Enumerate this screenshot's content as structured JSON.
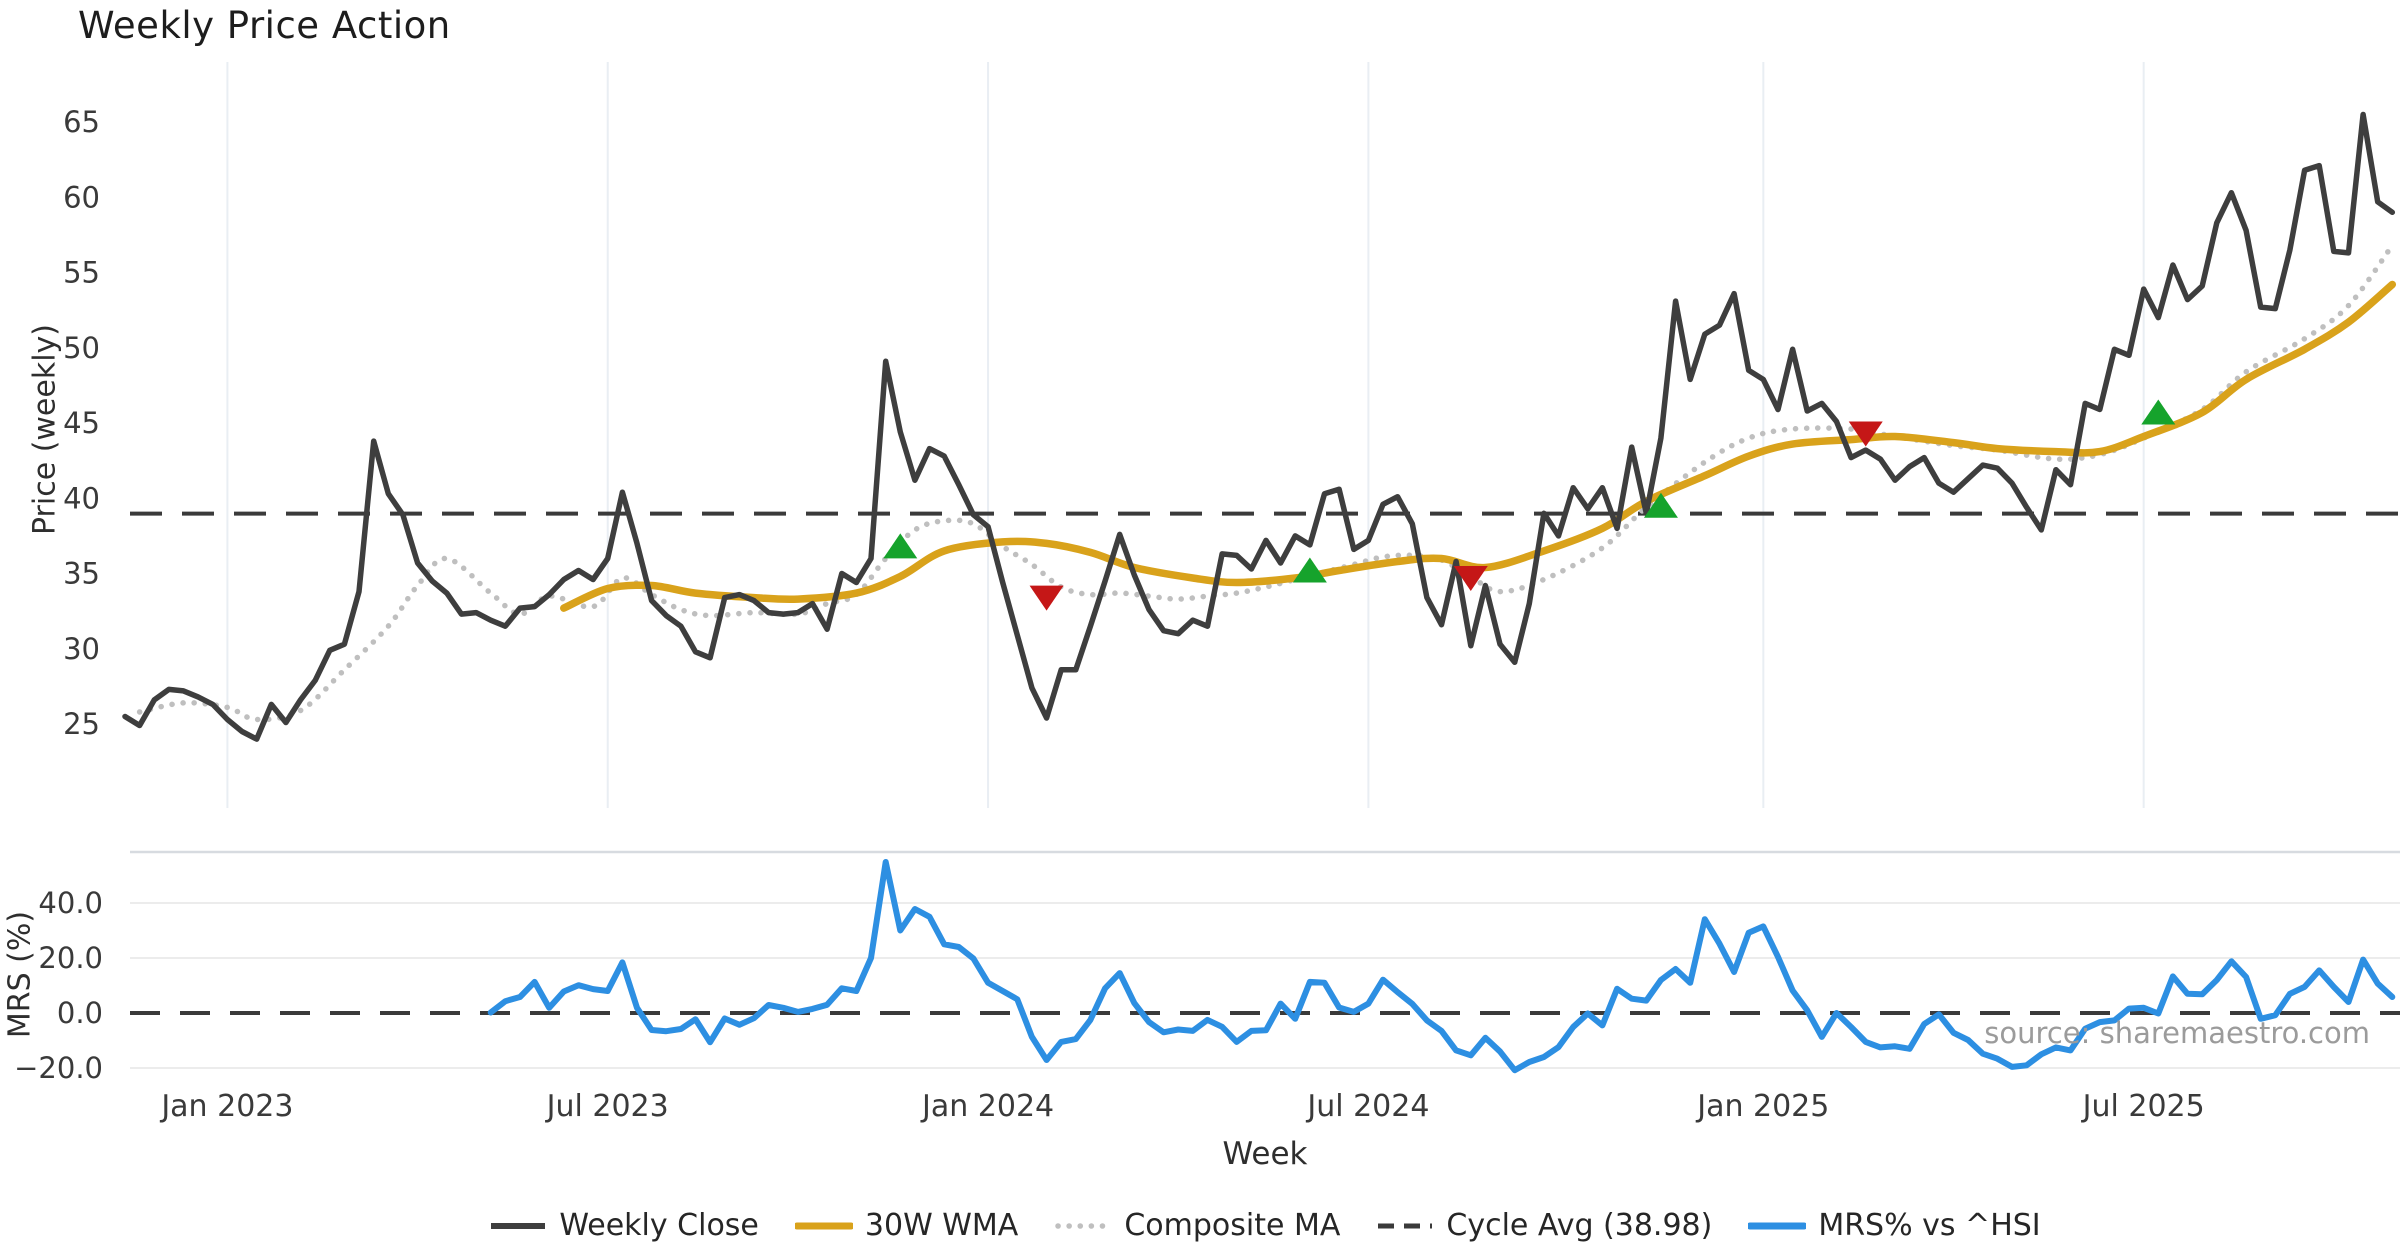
{
  "title": "Weekly Price Action",
  "price_panel": {
    "axis_label": "Price (weekly)",
    "ticks": [
      65,
      60,
      55,
      50,
      45,
      40,
      35,
      30,
      25
    ]
  },
  "mrs_panel": {
    "axis_label": "MRS (%)",
    "ticks": [
      {
        "label": "40.0",
        "value": 40
      },
      {
        "label": "20.0",
        "value": 20
      },
      {
        "label": "0.0",
        "value": 0
      },
      {
        "label": "−20.0",
        "value": -20
      }
    ]
  },
  "x_axis": {
    "label": "Week",
    "ticks": [
      {
        "label": "Jan 2023",
        "week": 7
      },
      {
        "label": "Jul 2023",
        "week": 33
      },
      {
        "label": "Jan 2024",
        "week": 59
      },
      {
        "label": "Jul 2024",
        "week": 85
      },
      {
        "label": "Jan 2025",
        "week": 112
      },
      {
        "label": "Jul 2025",
        "week": 138
      }
    ]
  },
  "source_note": "source: sharemaestro.com",
  "colors": {
    "weekly_close": "#3e3e3e",
    "wma": "#d9a21b",
    "composite": "#bfbfbf",
    "cycle_avg": "#3a3a3a",
    "mrs": "#2d8fe2",
    "buy_marker": "#16a32c",
    "sell_marker": "#c51717",
    "grid_vertical": "#e9eef3",
    "grid_horizontal": "#ececec",
    "panel_separator": "#d7dbe0"
  },
  "legend": [
    {
      "label": "Weekly Close",
      "style": "solid",
      "color": "#3e3e3e"
    },
    {
      "label": "30W WMA",
      "style": "solid-thick",
      "color": "#d9a21b"
    },
    {
      "label": "Composite MA",
      "style": "dotted",
      "color": "#bfbfbf"
    },
    {
      "label": "Cycle Avg (38.98)",
      "style": "dashed",
      "color": "#3a3a3a"
    },
    {
      "label": "MRS% vs ^HSI",
      "style": "solid-thick",
      "color": "#2d8fe2"
    }
  ],
  "chart_data": {
    "type": "line",
    "panels": [
      "price",
      "mrs"
    ],
    "week_count": 156,
    "cycle_avg": 38.98,
    "price_ylim": [
      23,
      69
    ],
    "mrs_ylim": [
      -25,
      58
    ],
    "series": [
      {
        "name": "Weekly Close",
        "panel": "price",
        "style": "solid",
        "start_week": 0,
        "values": [
          25.5,
          24.9,
          26.6,
          27.3,
          27.2,
          26.8,
          26.3,
          25.3,
          24.5,
          24.0,
          26.3,
          25.1,
          26.6,
          27.9,
          29.9,
          30.3,
          33.8,
          43.8,
          40.3,
          38.9,
          35.7,
          34.5,
          33.7,
          32.3,
          32.4,
          31.9,
          31.5,
          32.7,
          32.8,
          33.6,
          34.6,
          35.2,
          34.6,
          36.0,
          40.4,
          37.0,
          33.2,
          32.2,
          31.5,
          29.8,
          29.4,
          33.4,
          33.6,
          33.2,
          32.4,
          32.3,
          32.4,
          33.0,
          31.3,
          35.0,
          34.4,
          36.0,
          49.1,
          44.4,
          41.2,
          43.3,
          42.8,
          40.9,
          38.9,
          38.1,
          34.4,
          30.9,
          27.4,
          25.4,
          28.6,
          28.6,
          31.5,
          34.5,
          37.6,
          34.9,
          32.6,
          31.2,
          31.0,
          31.9,
          31.5,
          36.3,
          36.2,
          35.3,
          37.2,
          35.7,
          37.5,
          36.9,
          40.3,
          40.6,
          36.6,
          37.2,
          39.6,
          40.1,
          38.3,
          33.4,
          31.6,
          35.8,
          30.2,
          34.2,
          30.3,
          29.1,
          33.0,
          39.0,
          37.5,
          40.7,
          39.3,
          40.7,
          38.0,
          43.4,
          39.0,
          44.0,
          53.1,
          47.9,
          50.9,
          51.5,
          53.6,
          48.5,
          47.9,
          45.9,
          49.9,
          45.8,
          46.3,
          45.1,
          42.7,
          43.2,
          42.6,
          41.2,
          42.1,
          42.7,
          41.0,
          40.4,
          41.3,
          42.2,
          42.0,
          41.0,
          39.4,
          37.9,
          41.9,
          40.9,
          46.3,
          45.9,
          49.9,
          49.5,
          53.9,
          52.0,
          55.5,
          53.2,
          54.1,
          58.3,
          60.3,
          57.8,
          52.7,
          52.6,
          56.5,
          61.8,
          62.1,
          56.4,
          56.3,
          65.5,
          59.7,
          59.0
        ]
      },
      {
        "name": "30W WMA",
        "panel": "price",
        "style": "solid-thick",
        "anchors": [
          [
            30,
            32.7
          ],
          [
            33,
            34.0
          ],
          [
            36,
            34.2
          ],
          [
            39,
            33.7
          ],
          [
            43,
            33.4
          ],
          [
            46,
            33.3
          ],
          [
            50,
            33.7
          ],
          [
            53,
            34.8
          ],
          [
            56,
            36.5
          ],
          [
            60,
            37.1
          ],
          [
            63,
            37.0
          ],
          [
            66,
            36.4
          ],
          [
            69,
            35.4
          ],
          [
            73,
            34.7
          ],
          [
            76,
            34.4
          ],
          [
            80,
            34.7
          ],
          [
            83,
            35.2
          ],
          [
            87,
            35.8
          ],
          [
            90,
            36.0
          ],
          [
            93,
            35.4
          ],
          [
            97,
            36.5
          ],
          [
            101,
            38.0
          ],
          [
            104,
            39.8
          ],
          [
            108,
            41.5
          ],
          [
            111,
            42.8
          ],
          [
            114,
            43.6
          ],
          [
            118,
            43.9
          ],
          [
            121,
            44.1
          ],
          [
            125,
            43.7
          ],
          [
            128,
            43.3
          ],
          [
            132,
            43.1
          ],
          [
            135,
            43.1
          ],
          [
            138,
            44.1
          ],
          [
            142,
            45.7
          ],
          [
            145,
            47.9
          ],
          [
            149,
            49.9
          ],
          [
            152,
            51.7
          ],
          [
            155,
            54.2
          ]
        ]
      },
      {
        "name": "Composite MA",
        "panel": "price",
        "style": "dotted",
        "anchors": [
          [
            1,
            25.8
          ],
          [
            4,
            26.4
          ],
          [
            7,
            26.1
          ],
          [
            9,
            25.3
          ],
          [
            12,
            25.9
          ],
          [
            15,
            28.6
          ],
          [
            18,
            31.5
          ],
          [
            20,
            34.2
          ],
          [
            22,
            36.0
          ],
          [
            25,
            33.7
          ],
          [
            27,
            32.3
          ],
          [
            29,
            33.5
          ],
          [
            32,
            32.8
          ],
          [
            34,
            34.7
          ],
          [
            36,
            33.6
          ],
          [
            38,
            32.6
          ],
          [
            40,
            32.2
          ],
          [
            43,
            32.4
          ],
          [
            46,
            32.3
          ],
          [
            48,
            33.0
          ],
          [
            50,
            33.6
          ],
          [
            52,
            36.0
          ],
          [
            54,
            37.9
          ],
          [
            56,
            38.5
          ],
          [
            58,
            38.3
          ],
          [
            60,
            36.8
          ],
          [
            62,
            35.6
          ],
          [
            64,
            34.1
          ],
          [
            66,
            33.6
          ],
          [
            68,
            33.7
          ],
          [
            70,
            33.5
          ],
          [
            72,
            33.3
          ],
          [
            74,
            33.5
          ],
          [
            76,
            33.7
          ],
          [
            78,
            34.1
          ],
          [
            80,
            34.6
          ],
          [
            82,
            35.1
          ],
          [
            84,
            35.6
          ],
          [
            86,
            36.1
          ],
          [
            88,
            36.2
          ],
          [
            90,
            35.9
          ],
          [
            92,
            34.8
          ],
          [
            94,
            33.8
          ],
          [
            97,
            34.6
          ],
          [
            101,
            36.7
          ],
          [
            104,
            39.4
          ],
          [
            108,
            42.4
          ],
          [
            111,
            44.0
          ],
          [
            114,
            44.6
          ],
          [
            118,
            44.6
          ],
          [
            121,
            44.1
          ],
          [
            125,
            43.5
          ],
          [
            128,
            43.2
          ],
          [
            132,
            42.6
          ],
          [
            135,
            42.9
          ],
          [
            138,
            44.0
          ],
          [
            142,
            45.9
          ],
          [
            145,
            48.4
          ],
          [
            149,
            50.6
          ],
          [
            152,
            52.8
          ],
          [
            155,
            56.8
          ]
        ]
      },
      {
        "name": "Cycle Avg",
        "panel": "price",
        "style": "dashed",
        "value": 38.98
      },
      {
        "name": "MRS% vs ^HSI",
        "panel": "mrs",
        "style": "solid-thick",
        "start_week": 25,
        "values": [
          0.2,
          4.3,
          5.8,
          11.3,
          1.9,
          7.8,
          10.1,
          8.7,
          8.0,
          18.4,
          1.9,
          -6.2,
          -6.6,
          -5.8,
          -2.3,
          -10.6,
          -2.0,
          -4.3,
          -1.9,
          2.9,
          1.9,
          0.4,
          1.5,
          3.0,
          9.0,
          8.0,
          20.0,
          54.9,
          30.0,
          37.8,
          35.0,
          25.0,
          24.0,
          19.8,
          11.0,
          8.0,
          5.0,
          -8.7,
          -17.1,
          -10.5,
          -9.5,
          -2.5,
          9.0,
          14.5,
          3.6,
          -3.3,
          -7.0,
          -6.0,
          -6.5,
          -2.5,
          -5.0,
          -10.5,
          -6.5,
          -6.3,
          3.4,
          -2.1,
          11.3,
          11.0,
          2.0,
          0.4,
          3.4,
          12.1,
          7.6,
          3.3,
          -2.7,
          -6.5,
          -13.6,
          -15.4,
          -9.0,
          -14.0,
          -20.8,
          -17.8,
          -16.0,
          -12.4,
          -5.1,
          -0.2,
          -4.5,
          8.8,
          5.2,
          4.5,
          12.0,
          16.0,
          11.0,
          34.1,
          25.2,
          14.9,
          29.2,
          31.5,
          20.4,
          8.2,
          1.0,
          -8.7,
          0.0,
          -5.1,
          -10.5,
          -12.5,
          -12.1,
          -13.0,
          -4.0,
          -0.5,
          -7.2,
          -9.8,
          -14.8,
          -16.6,
          -19.6,
          -19.0,
          -15.0,
          -12.5,
          -13.6,
          -5.7,
          -3.3,
          -2.7,
          1.6,
          1.9,
          -0.2,
          13.3,
          7.0,
          6.8,
          12.0,
          18.8,
          13.1,
          -2.1,
          -0.8,
          7.0,
          9.5,
          15.5,
          9.5,
          4.0,
          19.4,
          10.7,
          5.8
        ]
      }
    ],
    "markers": [
      {
        "signal": "buy",
        "week": 53,
        "price": 36.8
      },
      {
        "signal": "sell",
        "week": 63,
        "price": 33.4
      },
      {
        "signal": "buy",
        "week": 81,
        "price": 35.2
      },
      {
        "signal": "sell",
        "week": 92,
        "price": 34.7
      },
      {
        "signal": "buy",
        "week": 105,
        "price": 39.5
      },
      {
        "signal": "sell",
        "week": 119,
        "price": 44.3
      },
      {
        "signal": "buy",
        "week": 139,
        "price": 45.7
      }
    ]
  }
}
